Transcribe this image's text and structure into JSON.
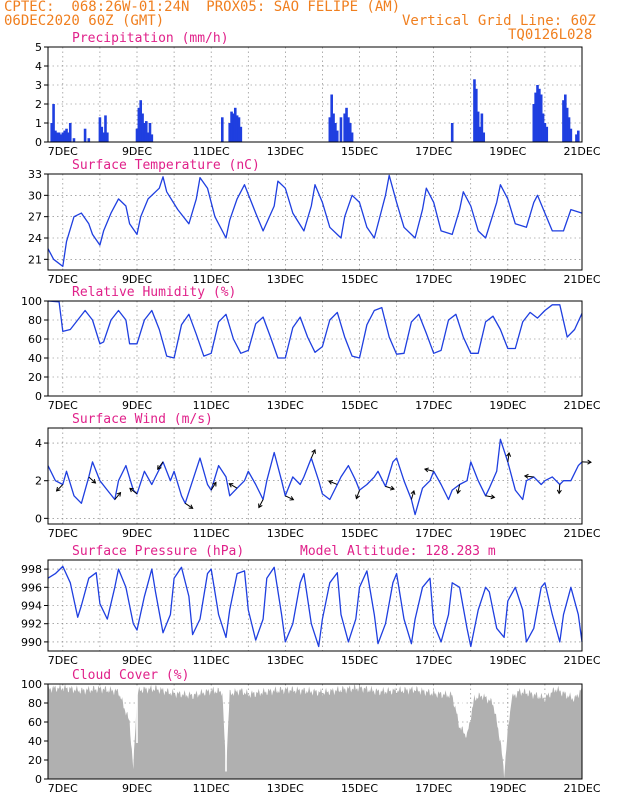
{
  "header": {
    "line1": "CPTEC:  068:26W-01:24N  PROX05: SAO FELIPE (AM)",
    "line2_left": "06DEC2020 60Z (GMT)",
    "line2_right": "Vertical Grid Line: 60Z",
    "line3_right": "TQ0126L028"
  },
  "x_tick_labels": [
    "7DEC",
    "9DEC",
    "11DEC",
    "13DEC",
    "15DEC",
    "17DEC",
    "19DEC",
    "21DEC"
  ],
  "colors": {
    "header": "#f07f1f",
    "title": "#e0218a",
    "series": "#1f3fe0",
    "cloud": "#b0b0b0",
    "grid": "#777777"
  },
  "chart_data": [
    {
      "type": "bar",
      "title": "Precipitation (mm/h)",
      "ylim": [
        0,
        5
      ],
      "yticks": [
        0,
        1,
        2,
        3,
        4,
        5
      ],
      "x_start": 6.6,
      "x_end": 21.0,
      "bars": [
        [
          6.7,
          1.0
        ],
        [
          6.75,
          2.0
        ],
        [
          6.8,
          0.6
        ],
        [
          6.85,
          0.5
        ],
        [
          6.9,
          0.5
        ],
        [
          6.95,
          0.4
        ],
        [
          7.0,
          0.5
        ],
        [
          7.05,
          0.6
        ],
        [
          7.1,
          0.7
        ],
        [
          7.15,
          0.5
        ],
        [
          7.2,
          1.0
        ],
        [
          7.3,
          0.2
        ],
        [
          7.6,
          0.7
        ],
        [
          7.7,
          0.2
        ],
        [
          8.0,
          1.3
        ],
        [
          8.05,
          0.8
        ],
        [
          8.1,
          0.5
        ],
        [
          8.15,
          1.4
        ],
        [
          8.2,
          0.5
        ],
        [
          9.0,
          0.7
        ],
        [
          9.05,
          1.8
        ],
        [
          9.1,
          2.2
        ],
        [
          9.15,
          1.5
        ],
        [
          9.2,
          1.0
        ],
        [
          9.25,
          1.1
        ],
        [
          9.3,
          0.5
        ],
        [
          9.35,
          1.0
        ],
        [
          9.4,
          0.4
        ],
        [
          11.3,
          1.3
        ],
        [
          11.5,
          1.0
        ],
        [
          11.55,
          1.6
        ],
        [
          11.6,
          1.5
        ],
        [
          11.65,
          1.8
        ],
        [
          11.7,
          1.4
        ],
        [
          11.75,
          1.3
        ],
        [
          11.8,
          0.8
        ],
        [
          14.2,
          1.3
        ],
        [
          14.25,
          2.5
        ],
        [
          14.3,
          1.5
        ],
        [
          14.35,
          1.0
        ],
        [
          14.4,
          0.6
        ],
        [
          14.5,
          1.3
        ],
        [
          14.6,
          1.5
        ],
        [
          14.65,
          1.8
        ],
        [
          14.7,
          1.3
        ],
        [
          14.75,
          1.0
        ],
        [
          14.8,
          0.5
        ],
        [
          17.5,
          1.0
        ],
        [
          18.1,
          3.3
        ],
        [
          18.15,
          2.8
        ],
        [
          18.2,
          1.6
        ],
        [
          18.25,
          0.8
        ],
        [
          18.3,
          1.5
        ],
        [
          18.35,
          0.5
        ],
        [
          19.7,
          2.0
        ],
        [
          19.75,
          2.6
        ],
        [
          19.8,
          3.0
        ],
        [
          19.85,
          2.8
        ],
        [
          19.9,
          2.5
        ],
        [
          19.95,
          1.5
        ],
        [
          20.0,
          1.0
        ],
        [
          20.05,
          0.8
        ],
        [
          20.5,
          2.2
        ],
        [
          20.55,
          2.5
        ],
        [
          20.6,
          1.8
        ],
        [
          20.65,
          1.3
        ],
        [
          20.7,
          0.7
        ],
        [
          20.85,
          0.4
        ],
        [
          20.9,
          0.6
        ]
      ]
    },
    {
      "type": "line",
      "title": "Surface Temperature (nC)",
      "ylim": [
        19.5,
        33
      ],
      "yticks": [
        21,
        24,
        27,
        30,
        33
      ],
      "x": [
        6.6,
        6.75,
        7.0,
        7.1,
        7.3,
        7.5,
        7.7,
        7.8,
        8.0,
        8.1,
        8.3,
        8.5,
        8.7,
        8.8,
        9.0,
        9.1,
        9.3,
        9.6,
        9.7,
        9.8,
        10.1,
        10.4,
        10.6,
        10.7,
        10.9,
        11.1,
        11.4,
        11.5,
        11.7,
        11.9,
        12.2,
        12.4,
        12.7,
        12.8,
        13.0,
        13.2,
        13.5,
        13.7,
        13.8,
        14.0,
        14.2,
        14.5,
        14.6,
        14.8,
        15.0,
        15.2,
        15.4,
        15.7,
        15.8,
        16.0,
        16.2,
        16.5,
        16.7,
        16.8,
        17.0,
        17.2,
        17.5,
        17.7,
        17.8,
        18.0,
        18.2,
        18.4,
        18.7,
        18.8,
        19.0,
        19.2,
        19.5,
        19.7,
        19.8,
        20.0,
        20.2,
        20.5,
        20.7,
        21.0
      ],
      "y": [
        22.5,
        21.0,
        20.0,
        23.5,
        27.0,
        27.5,
        26.0,
        24.5,
        23.0,
        25.0,
        27.5,
        29.5,
        28.5,
        26.0,
        24.5,
        27.0,
        29.5,
        31.0,
        32.6,
        30.5,
        28.0,
        26.0,
        29.5,
        32.5,
        31.0,
        27.0,
        24.0,
        26.5,
        29.5,
        31.5,
        27.5,
        25.0,
        28.5,
        32.0,
        31.0,
        27.5,
        25.0,
        28.5,
        31.5,
        29.0,
        25.5,
        24.0,
        27.0,
        30.0,
        29.0,
        25.5,
        24.0,
        30.0,
        32.8,
        29.0,
        25.5,
        24.0,
        28.0,
        31.0,
        29.0,
        25.0,
        24.5,
        28.0,
        30.5,
        28.5,
        25.0,
        24.0,
        29.0,
        31.5,
        29.5,
        26.0,
        25.5,
        29.0,
        30.0,
        27.5,
        25.0,
        25.0,
        28.0,
        27.5
      ]
    },
    {
      "type": "line",
      "title": "Relative Humidity (%)",
      "ylim": [
        0,
        100
      ],
      "yticks": [
        0,
        20,
        40,
        60,
        80,
        100
      ],
      "x": [
        6.6,
        6.9,
        7.0,
        7.2,
        7.4,
        7.6,
        7.8,
        8.0,
        8.1,
        8.3,
        8.5,
        8.7,
        8.8,
        9.0,
        9.2,
        9.4,
        9.6,
        9.8,
        10.0,
        10.2,
        10.4,
        10.6,
        10.8,
        11.0,
        11.2,
        11.4,
        11.6,
        11.8,
        12.0,
        12.2,
        12.4,
        12.6,
        12.8,
        13.0,
        13.2,
        13.4,
        13.6,
        13.8,
        14.0,
        14.2,
        14.4,
        14.6,
        14.8,
        15.0,
        15.2,
        15.4,
        15.6,
        15.8,
        16.0,
        16.2,
        16.4,
        16.6,
        16.8,
        17.0,
        17.2,
        17.4,
        17.6,
        17.8,
        18.0,
        18.2,
        18.4,
        18.6,
        18.8,
        19.0,
        19.2,
        19.4,
        19.6,
        19.8,
        20.0,
        20.2,
        20.4,
        20.6,
        20.8,
        21.0
      ],
      "y": [
        100,
        99,
        68,
        70,
        80,
        90,
        80,
        55,
        57,
        80,
        90,
        80,
        55,
        55,
        80,
        90,
        70,
        42,
        40,
        75,
        86,
        65,
        42,
        45,
        78,
        86,
        60,
        45,
        48,
        76,
        83,
        62,
        40,
        40,
        72,
        83,
        62,
        46,
        52,
        80,
        88,
        62,
        42,
        40,
        75,
        90,
        93,
        62,
        44,
        45,
        78,
        86,
        66,
        45,
        48,
        80,
        86,
        62,
        45,
        45,
        78,
        84,
        70,
        50,
        50,
        78,
        88,
        82,
        90,
        96,
        96,
        62,
        70,
        87
      ]
    },
    {
      "type": "line",
      "title": "Surface Wind (m/s)",
      "ylim": [
        -0.3,
        4.8
      ],
      "yticks": [
        0,
        2,
        4
      ],
      "x": [
        6.6,
        6.8,
        7.0,
        7.1,
        7.3,
        7.5,
        7.7,
        7.8,
        8.0,
        8.2,
        8.4,
        8.5,
        8.7,
        8.9,
        9.0,
        9.2,
        9.4,
        9.5,
        9.7,
        9.9,
        10.0,
        10.2,
        10.3,
        10.5,
        10.7,
        10.9,
        11.0,
        11.2,
        11.4,
        11.5,
        11.7,
        11.9,
        12.0,
        12.2,
        12.4,
        12.5,
        12.7,
        12.9,
        13.0,
        13.2,
        13.4,
        13.5,
        13.7,
        13.9,
        14.0,
        14.2,
        14.4,
        14.5,
        14.7,
        14.9,
        15.0,
        15.2,
        15.4,
        15.5,
        15.7,
        15.9,
        16.0,
        16.2,
        16.4,
        16.5,
        16.7,
        16.9,
        17.0,
        17.2,
        17.4,
        17.5,
        17.7,
        17.9,
        18.0,
        18.2,
        18.4,
        18.5,
        18.7,
        18.8,
        19.0,
        19.2,
        19.4,
        19.5,
        19.7,
        19.9,
        20.0,
        20.2,
        20.4,
        20.5,
        20.7,
        20.9,
        21.0
      ],
      "y": [
        2.8,
        2.0,
        1.8,
        2.5,
        1.2,
        0.8,
        2.2,
        3.0,
        2.0,
        1.5,
        1.0,
        2.0,
        2.8,
        1.5,
        1.3,
        2.5,
        1.8,
        2.2,
        3.0,
        2.0,
        2.5,
        1.2,
        0.8,
        2.0,
        3.2,
        1.8,
        1.5,
        2.8,
        2.2,
        1.2,
        1.6,
        2.0,
        2.5,
        1.8,
        1.0,
        2.0,
        3.5,
        2.0,
        1.2,
        2.2,
        1.8,
        2.2,
        3.2,
        2.0,
        1.3,
        1.0,
        1.8,
        2.2,
        2.8,
        2.0,
        1.5,
        1.8,
        2.2,
        2.5,
        1.7,
        3.0,
        3.2,
        2.0,
        1.0,
        0.2,
        1.6,
        2.0,
        2.5,
        1.8,
        1.0,
        1.5,
        1.8,
        2.0,
        3.0,
        2.0,
        1.2,
        1.6,
        2.5,
        4.2,
        3.0,
        1.5,
        1.0,
        2.0,
        2.2,
        1.8,
        2.0,
        2.2,
        1.8,
        2.0,
        2.0,
        2.8,
        3.0
      ]
    },
    {
      "type": "line",
      "title": "Surface Pressure (hPa)",
      "annotation": "Model Altitude: 128.283 m",
      "ylim": [
        989,
        999
      ],
      "yticks": [
        990,
        992,
        994,
        996,
        998
      ],
      "x": [
        6.6,
        6.8,
        7.0,
        7.2,
        7.4,
        7.5,
        7.7,
        7.9,
        8.0,
        8.2,
        8.4,
        8.5,
        8.7,
        8.9,
        9.0,
        9.2,
        9.4,
        9.5,
        9.7,
        9.9,
        10.0,
        10.2,
        10.4,
        10.5,
        10.7,
        10.9,
        11.0,
        11.2,
        11.4,
        11.5,
        11.7,
        11.9,
        12.0,
        12.2,
        12.4,
        12.5,
        12.7,
        12.9,
        13.0,
        13.2,
        13.4,
        13.5,
        13.7,
        13.9,
        14.0,
        14.2,
        14.4,
        14.5,
        14.7,
        14.9,
        15.0,
        15.2,
        15.4,
        15.5,
        15.7,
        15.9,
        16.0,
        16.2,
        16.4,
        16.5,
        16.7,
        16.9,
        17.0,
        17.2,
        17.4,
        17.5,
        17.7,
        17.9,
        18.0,
        18.2,
        18.4,
        18.5,
        18.7,
        18.9,
        19.0,
        19.2,
        19.4,
        19.5,
        19.7,
        19.9,
        20.0,
        20.2,
        20.4,
        20.5,
        20.7,
        20.9,
        21.0
      ],
      "y": [
        997.0,
        997.5,
        998.3,
        996.5,
        992.7,
        994.0,
        997.0,
        997.6,
        994.2,
        992.5,
        996.0,
        998.0,
        996.0,
        992.0,
        991.3,
        995.0,
        998.0,
        995.5,
        991.0,
        993.0,
        997.0,
        998.2,
        995.0,
        990.8,
        992.5,
        997.5,
        998.0,
        993.0,
        990.5,
        993.5,
        997.5,
        997.8,
        993.5,
        990.2,
        992.5,
        997.0,
        998.2,
        993.0,
        990.0,
        992.0,
        996.5,
        997.5,
        992.0,
        989.5,
        992.5,
        996.5,
        997.6,
        993.0,
        990.0,
        992.5,
        996.0,
        997.8,
        993.0,
        989.8,
        992.0,
        996.5,
        997.5,
        992.5,
        989.8,
        992.5,
        996.0,
        997.0,
        992.0,
        990.0,
        993.0,
        996.5,
        996.0,
        991.5,
        989.5,
        993.5,
        996.0,
        995.5,
        991.5,
        990.5,
        994.5,
        996.0,
        993.5,
        990.0,
        991.5,
        996.0,
        996.5,
        993.0,
        990.0,
        993.0,
        996.0,
        993.0,
        990.0
      ]
    },
    {
      "type": "area",
      "title": "Cloud Cover (%)",
      "ylim": [
        0,
        100
      ],
      "yticks": [
        0,
        20,
        40,
        60,
        80,
        100
      ],
      "x": [
        6.6,
        7.0,
        7.5,
        8.0,
        8.5,
        8.8,
        8.9,
        9.0,
        9.1,
        9.5,
        10.0,
        10.5,
        11.0,
        11.3,
        11.4,
        11.5,
        11.6,
        11.8,
        12.0,
        12.5,
        13.0,
        13.5,
        14.0,
        14.5,
        15.0,
        15.5,
        16.0,
        16.5,
        17.0,
        17.5,
        17.7,
        17.9,
        18.1,
        18.3,
        18.6,
        18.8,
        18.9,
        19.0,
        19.1,
        19.3,
        19.6,
        20.0,
        20.3,
        20.5,
        20.8,
        21.0
      ],
      "y": [
        95,
        96,
        93,
        95,
        92,
        60,
        10,
        90,
        94,
        95,
        90,
        88,
        93,
        92,
        10,
        90,
        91,
        93,
        89,
        92,
        94,
        93,
        91,
        94,
        96,
        92,
        93,
        94,
        90,
        88,
        55,
        45,
        85,
        88,
        80,
        40,
        5,
        50,
        85,
        92,
        90,
        85,
        95,
        90,
        84,
        95
      ]
    }
  ]
}
